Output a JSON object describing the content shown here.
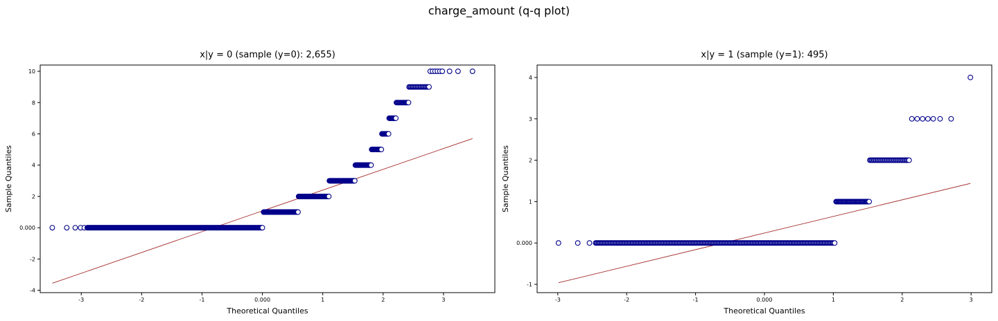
{
  "figure": {
    "title": "charge_amount (q-q plot)"
  },
  "styles": {
    "marker_edge": "#00008b",
    "marker_fill": "#ffffff",
    "line_color": "#a52a2a"
  },
  "chart_data": [
    {
      "type": "scatter",
      "title": "x|y = 0 (sample (y=0): 2,655)",
      "xlabel": "Theoretical Quantiles",
      "ylabel": "Sample Quantiles",
      "xlim": [
        -3.68,
        3.85
      ],
      "ylim": [
        -4.15,
        10.4
      ],
      "xticks": [
        -3,
        -2,
        -1,
        0,
        1,
        2,
        3
      ],
      "xtick_labels": [
        "-3",
        "-2",
        "-1",
        "0.000",
        "1",
        "2",
        "3"
      ],
      "yticks": [
        -4,
        -2,
        0,
        2,
        4,
        6,
        8,
        10
      ],
      "ytick_labels": [
        "-4",
        "-2",
        "0.000",
        "2",
        "4",
        "6",
        "8",
        "10"
      ],
      "reference_line": {
        "x": [
          -3.48,
          3.48
        ],
        "y": [
          -3.55,
          5.7
        ]
      },
      "steps": [
        {
          "y": 0,
          "x_from": -2.9,
          "x_to": 0.0,
          "count": 300,
          "tail": [
            -3.48,
            -3.24,
            -3.1,
            -3.01,
            -2.95
          ]
        },
        {
          "y": 1,
          "x_from": 0.02,
          "x_to": 0.59,
          "count": 110
        },
        {
          "y": 2,
          "x_from": 0.6,
          "x_to": 1.1,
          "count": 90
        },
        {
          "y": 3,
          "x_from": 1.11,
          "x_to": 1.53,
          "count": 70
        },
        {
          "y": 4,
          "x_from": 1.54,
          "x_to": 1.8,
          "count": 40
        },
        {
          "y": 5,
          "x_from": 1.81,
          "x_to": 1.97,
          "count": 25
        },
        {
          "y": 6,
          "x_from": 1.98,
          "x_to": 2.09,
          "count": 15
        },
        {
          "y": 7,
          "x_from": 2.1,
          "x_to": 2.21,
          "count": 15
        },
        {
          "y": 8,
          "x_from": 2.22,
          "x_to": 2.42,
          "count": 18
        },
        {
          "y": 9,
          "x_from": 2.43,
          "x_to": 2.76,
          "count": 22
        },
        {
          "y": 10,
          "x_from": 2.78,
          "x_to": 2.98,
          "count": 6,
          "tail": [
            3.1,
            3.24,
            3.48
          ]
        }
      ]
    },
    {
      "type": "scatter",
      "title": "x|y = 1 (sample (y=1): 495)",
      "xlabel": "Theoretical Quantiles",
      "ylabel": "Sample Quantiles",
      "xlim": [
        -3.3,
        3.3
      ],
      "ylim": [
        -1.2,
        4.3
      ],
      "xticks": [
        -3,
        -2,
        -1,
        0,
        1,
        2,
        3
      ],
      "xtick_labels": [
        "-3",
        "-2",
        "-1",
        "0.000",
        "1",
        "2",
        "3"
      ],
      "yticks": [
        -1,
        0,
        1,
        2,
        3,
        4
      ],
      "ytick_labels": [
        "-1",
        "0.000",
        "1",
        "2",
        "3",
        "4"
      ],
      "reference_line": {
        "x": [
          -2.99,
          2.99
        ],
        "y": [
          -0.96,
          1.44
        ]
      },
      "steps": [
        {
          "y": 0,
          "x_from": -2.45,
          "x_to": 1.02,
          "count": 260,
          "tail": [
            -2.99,
            -2.71,
            -2.54
          ]
        },
        {
          "y": 1,
          "x_from": 1.04,
          "x_to": 1.52,
          "count": 45
        },
        {
          "y": 2,
          "x_from": 1.53,
          "x_to": 2.1,
          "count": 40
        },
        {
          "y": 3,
          "x_from": 2.14,
          "x_to": 2.45,
          "count": 5,
          "tail": [
            2.55,
            2.71
          ]
        },
        {
          "y": 4,
          "x_from": 2.99,
          "x_to": 2.99,
          "count": 1
        }
      ]
    }
  ]
}
